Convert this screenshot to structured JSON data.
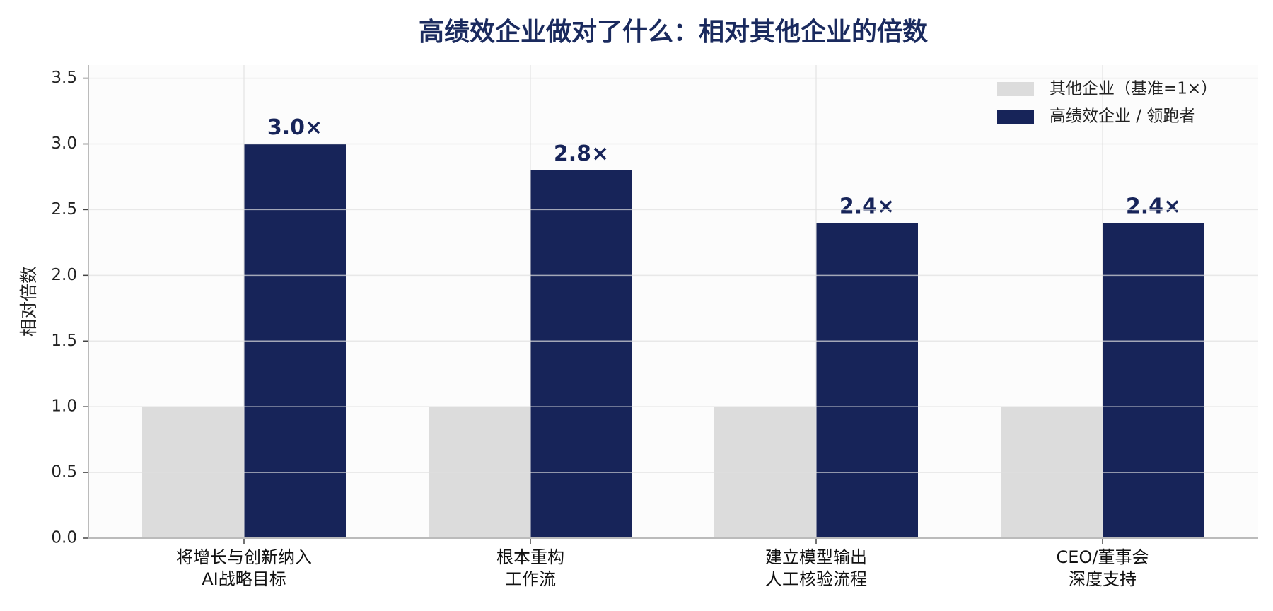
{
  "chart_data": {
    "type": "bar",
    "title": "高绩效企业做对了什么：相对其他企业的倍数",
    "y_label": "相对倍数",
    "categories": [
      "将增长与创新纳入\nAI战略目标",
      "根本重构\n工作流",
      "建立模型输出\n人工核验流程",
      "CEO/董事会\n深度支持"
    ],
    "series": [
      {
        "name": "其他企业（基准=1×）",
        "color": "#dcdcdc",
        "values": [
          1,
          1,
          1,
          1
        ]
      },
      {
        "name": "高绩效企业 / 领跑者",
        "color": "#172459",
        "values": [
          3.0,
          2.8,
          2.4,
          2.4
        ],
        "value_labels": [
          "3.0×",
          "2.8×",
          "2.4×",
          "2.4×"
        ]
      }
    ],
    "ylim": [
      0,
      3.6
    ],
    "yticks": [
      {
        "value": 0,
        "label": "0.0"
      },
      0.5,
      {
        "value": 1,
        "label": "1.0"
      },
      1.5,
      {
        "value": 2,
        "label": "2.0"
      },
      2.5,
      {
        "value": 3,
        "label": "3.0"
      },
      3.5
    ],
    "grid": true,
    "legend": "upper right"
  }
}
